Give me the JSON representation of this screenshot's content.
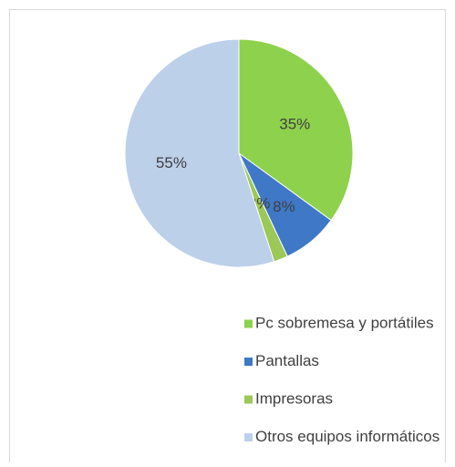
{
  "chart_data": {
    "type": "pie",
    "categories": [
      "Pc sobremesa y portátiles",
      "Pantallas",
      "Impresoras",
      "Otros equipos informáticos"
    ],
    "values": [
      35,
      8,
      2,
      55
    ],
    "value_labels": [
      "35%",
      "8%",
      "2%",
      "55%"
    ],
    "colors": [
      "#8ed14c",
      "#3f78c6",
      "#9bc857",
      "#bcd0ea"
    ],
    "legend": "bottom"
  }
}
